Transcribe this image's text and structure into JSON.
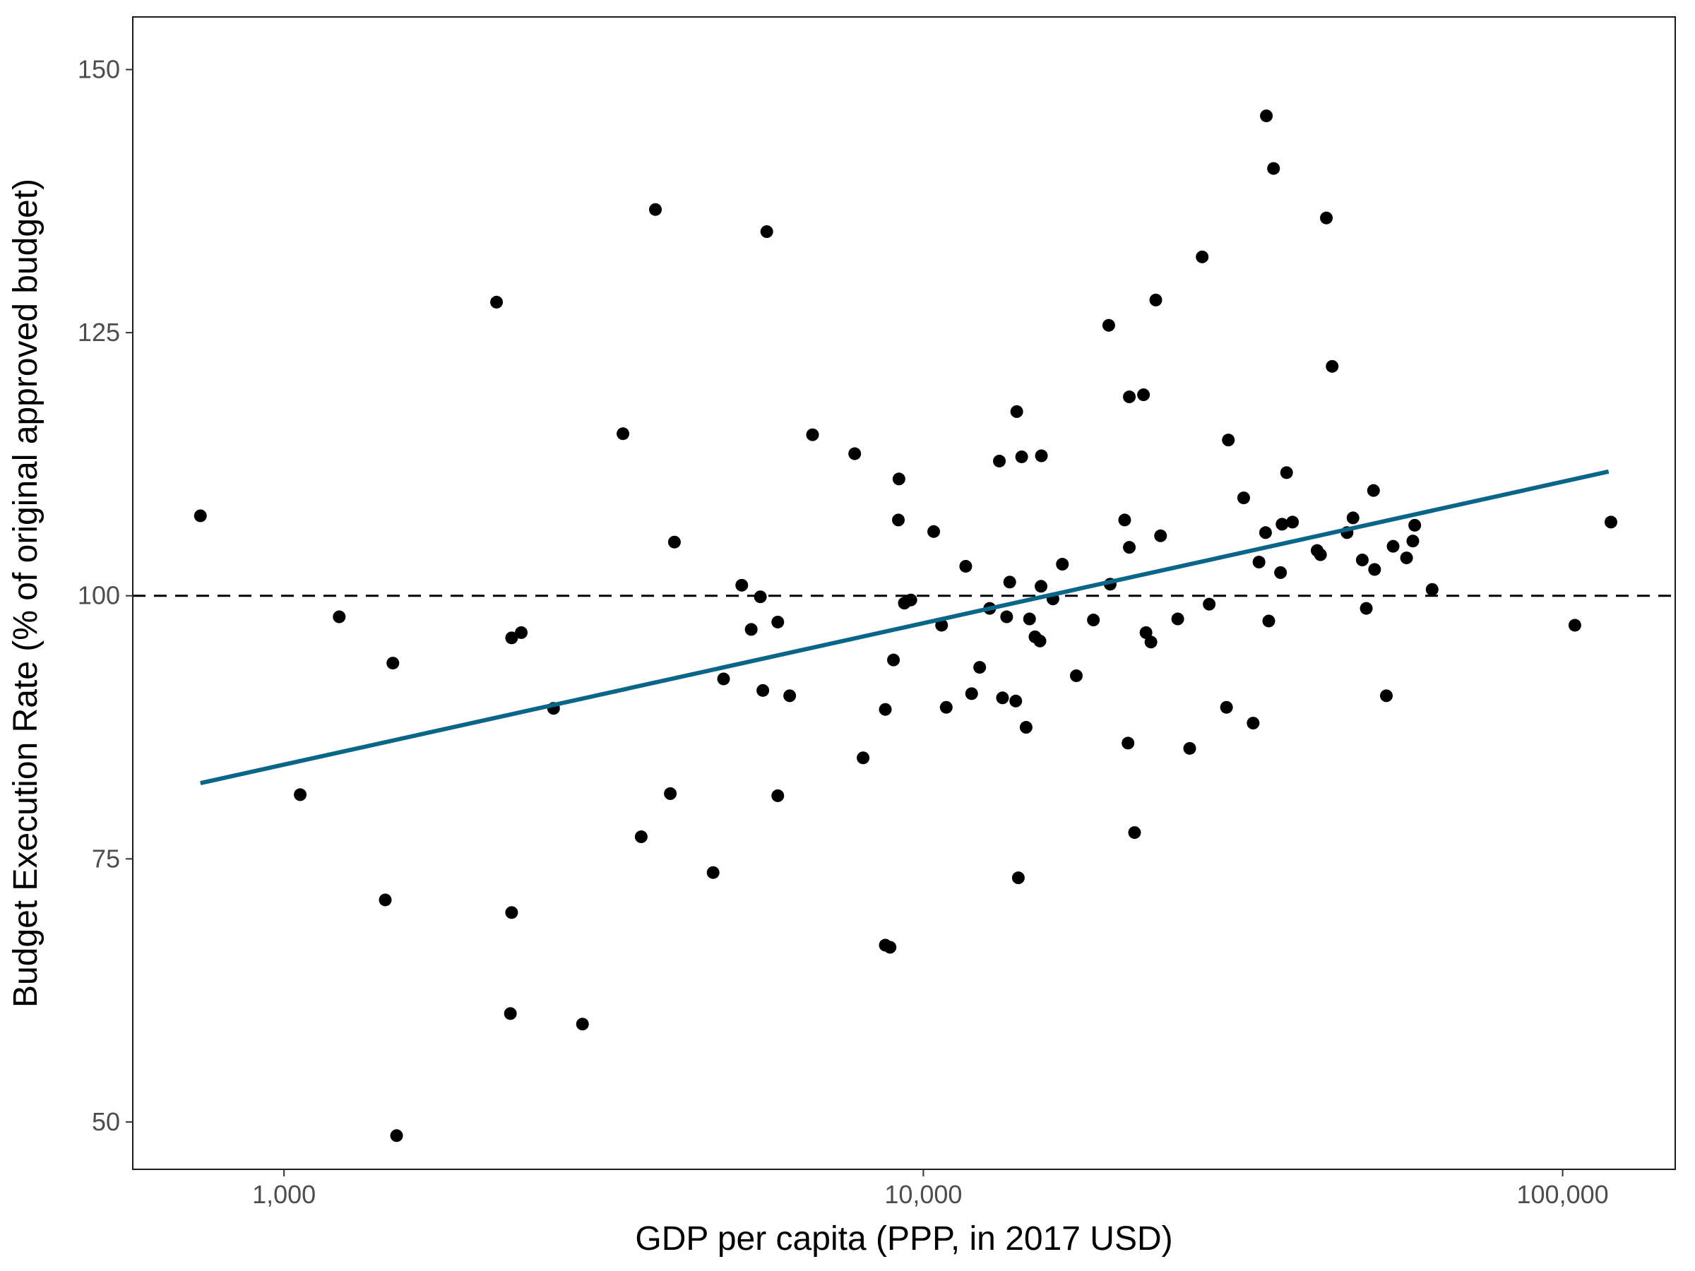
{
  "chart_data": {
    "type": "scatter",
    "xlabel": "GDP per capita (PPP, in 2017 USD)",
    "ylabel": "Budget Execution Rate (% of original approved budget)",
    "x_scale": "log10",
    "xlim": [
      580,
      150000
    ],
    "ylim": [
      45.5,
      155
    ],
    "x_ticks": [
      1000,
      10000,
      100000
    ],
    "x_tick_labels": [
      "1,000",
      "10,000",
      "100,000"
    ],
    "y_ticks": [
      50,
      75,
      100,
      125,
      150
    ],
    "y_tick_labels": [
      "50",
      "75",
      "100",
      "125",
      "150"
    ],
    "grid": false,
    "reference_line": {
      "y": 100,
      "style": "dashed",
      "color": "#000000"
    },
    "fit_line": {
      "x": [
        740,
        118000
      ],
      "y": [
        82.2,
        111.8
      ],
      "color": "#0a6688"
    },
    "point_color": "#000000",
    "points": [
      {
        "x": 740,
        "y": 107.6
      },
      {
        "x": 1060,
        "y": 81.1
      },
      {
        "x": 1220,
        "y": 98.0
      },
      {
        "x": 1440,
        "y": 71.1
      },
      {
        "x": 1480,
        "y": 93.6
      },
      {
        "x": 1500,
        "y": 48.7
      },
      {
        "x": 2150,
        "y": 127.9
      },
      {
        "x": 2270,
        "y": 96.0
      },
      {
        "x": 2270,
        "y": 69.9
      },
      {
        "x": 2260,
        "y": 60.3
      },
      {
        "x": 2350,
        "y": 96.5
      },
      {
        "x": 2640,
        "y": 89.3
      },
      {
        "x": 2930,
        "y": 59.3
      },
      {
        "x": 3390,
        "y": 115.4
      },
      {
        "x": 3620,
        "y": 77.1
      },
      {
        "x": 3810,
        "y": 136.7
      },
      {
        "x": 4020,
        "y": 81.2
      },
      {
        "x": 4080,
        "y": 105.1
      },
      {
        "x": 4690,
        "y": 73.7
      },
      {
        "x": 4870,
        "y": 92.1
      },
      {
        "x": 5200,
        "y": 101.0
      },
      {
        "x": 5380,
        "y": 96.8
      },
      {
        "x": 5560,
        "y": 99.9
      },
      {
        "x": 5610,
        "y": 91.0
      },
      {
        "x": 5690,
        "y": 134.6
      },
      {
        "x": 5920,
        "y": 97.5
      },
      {
        "x": 5920,
        "y": 81.0
      },
      {
        "x": 6180,
        "y": 90.5
      },
      {
        "x": 6710,
        "y": 115.3
      },
      {
        "x": 7810,
        "y": 113.5
      },
      {
        "x": 8050,
        "y": 84.6
      },
      {
        "x": 8720,
        "y": 66.8
      },
      {
        "x": 8720,
        "y": 89.2
      },
      {
        "x": 8870,
        "y": 66.6
      },
      {
        "x": 8980,
        "y": 93.9
      },
      {
        "x": 9160,
        "y": 111.1
      },
      {
        "x": 9140,
        "y": 107.2
      },
      {
        "x": 9340,
        "y": 99.3
      },
      {
        "x": 9560,
        "y": 99.6
      },
      {
        "x": 10380,
        "y": 106.1
      },
      {
        "x": 10680,
        "y": 97.2
      },
      {
        "x": 10860,
        "y": 89.4
      },
      {
        "x": 11650,
        "y": 102.8
      },
      {
        "x": 11900,
        "y": 90.7
      },
      {
        "x": 12250,
        "y": 93.2
      },
      {
        "x": 12700,
        "y": 98.8
      },
      {
        "x": 13150,
        "y": 112.8
      },
      {
        "x": 13300,
        "y": 90.3
      },
      {
        "x": 13500,
        "y": 98.0
      },
      {
        "x": 13650,
        "y": 101.3
      },
      {
        "x": 13950,
        "y": 90.0
      },
      {
        "x": 14000,
        "y": 117.5
      },
      {
        "x": 14080,
        "y": 73.2
      },
      {
        "x": 14250,
        "y": 113.2
      },
      {
        "x": 14480,
        "y": 87.5
      },
      {
        "x": 14660,
        "y": 97.8
      },
      {
        "x": 14950,
        "y": 96.1
      },
      {
        "x": 15220,
        "y": 95.7
      },
      {
        "x": 15300,
        "y": 113.3
      },
      {
        "x": 15280,
        "y": 100.9
      },
      {
        "x": 15950,
        "y": 99.7
      },
      {
        "x": 16500,
        "y": 103.0
      },
      {
        "x": 17350,
        "y": 92.4
      },
      {
        "x": 18450,
        "y": 97.7
      },
      {
        "x": 19500,
        "y": 125.7
      },
      {
        "x": 19600,
        "y": 101.1
      },
      {
        "x": 20650,
        "y": 107.2
      },
      {
        "x": 20900,
        "y": 86.0
      },
      {
        "x": 21000,
        "y": 104.6
      },
      {
        "x": 21000,
        "y": 118.9
      },
      {
        "x": 21400,
        "y": 77.5
      },
      {
        "x": 22100,
        "y": 119.1
      },
      {
        "x": 22300,
        "y": 96.5
      },
      {
        "x": 22700,
        "y": 95.6
      },
      {
        "x": 23100,
        "y": 128.1
      },
      {
        "x": 23500,
        "y": 105.7
      },
      {
        "x": 25000,
        "y": 97.8
      },
      {
        "x": 26100,
        "y": 85.5
      },
      {
        "x": 27300,
        "y": 132.2
      },
      {
        "x": 28000,
        "y": 99.2
      },
      {
        "x": 29800,
        "y": 89.4
      },
      {
        "x": 30000,
        "y": 114.8
      },
      {
        "x": 31700,
        "y": 109.3
      },
      {
        "x": 32800,
        "y": 87.9
      },
      {
        "x": 33500,
        "y": 103.2
      },
      {
        "x": 34300,
        "y": 106.0
      },
      {
        "x": 34400,
        "y": 145.6
      },
      {
        "x": 34700,
        "y": 97.6
      },
      {
        "x": 35300,
        "y": 140.6
      },
      {
        "x": 36200,
        "y": 102.2
      },
      {
        "x": 36400,
        "y": 106.8
      },
      {
        "x": 37000,
        "y": 111.7
      },
      {
        "x": 37800,
        "y": 107.0
      },
      {
        "x": 41300,
        "y": 104.3
      },
      {
        "x": 41800,
        "y": 103.9
      },
      {
        "x": 42700,
        "y": 135.9
      },
      {
        "x": 43600,
        "y": 121.8
      },
      {
        "x": 46000,
        "y": 106.0
      },
      {
        "x": 47000,
        "y": 107.4
      },
      {
        "x": 48600,
        "y": 103.4
      },
      {
        "x": 49300,
        "y": 98.8
      },
      {
        "x": 50600,
        "y": 110.0
      },
      {
        "x": 50800,
        "y": 102.5
      },
      {
        "x": 53000,
        "y": 90.5
      },
      {
        "x": 54300,
        "y": 104.7
      },
      {
        "x": 57000,
        "y": 103.6
      },
      {
        "x": 58300,
        "y": 105.2
      },
      {
        "x": 58700,
        "y": 106.7
      },
      {
        "x": 62500,
        "y": 100.6
      },
      {
        "x": 104500,
        "y": 97.2
      },
      {
        "x": 119000,
        "y": 107.0
      }
    ]
  }
}
